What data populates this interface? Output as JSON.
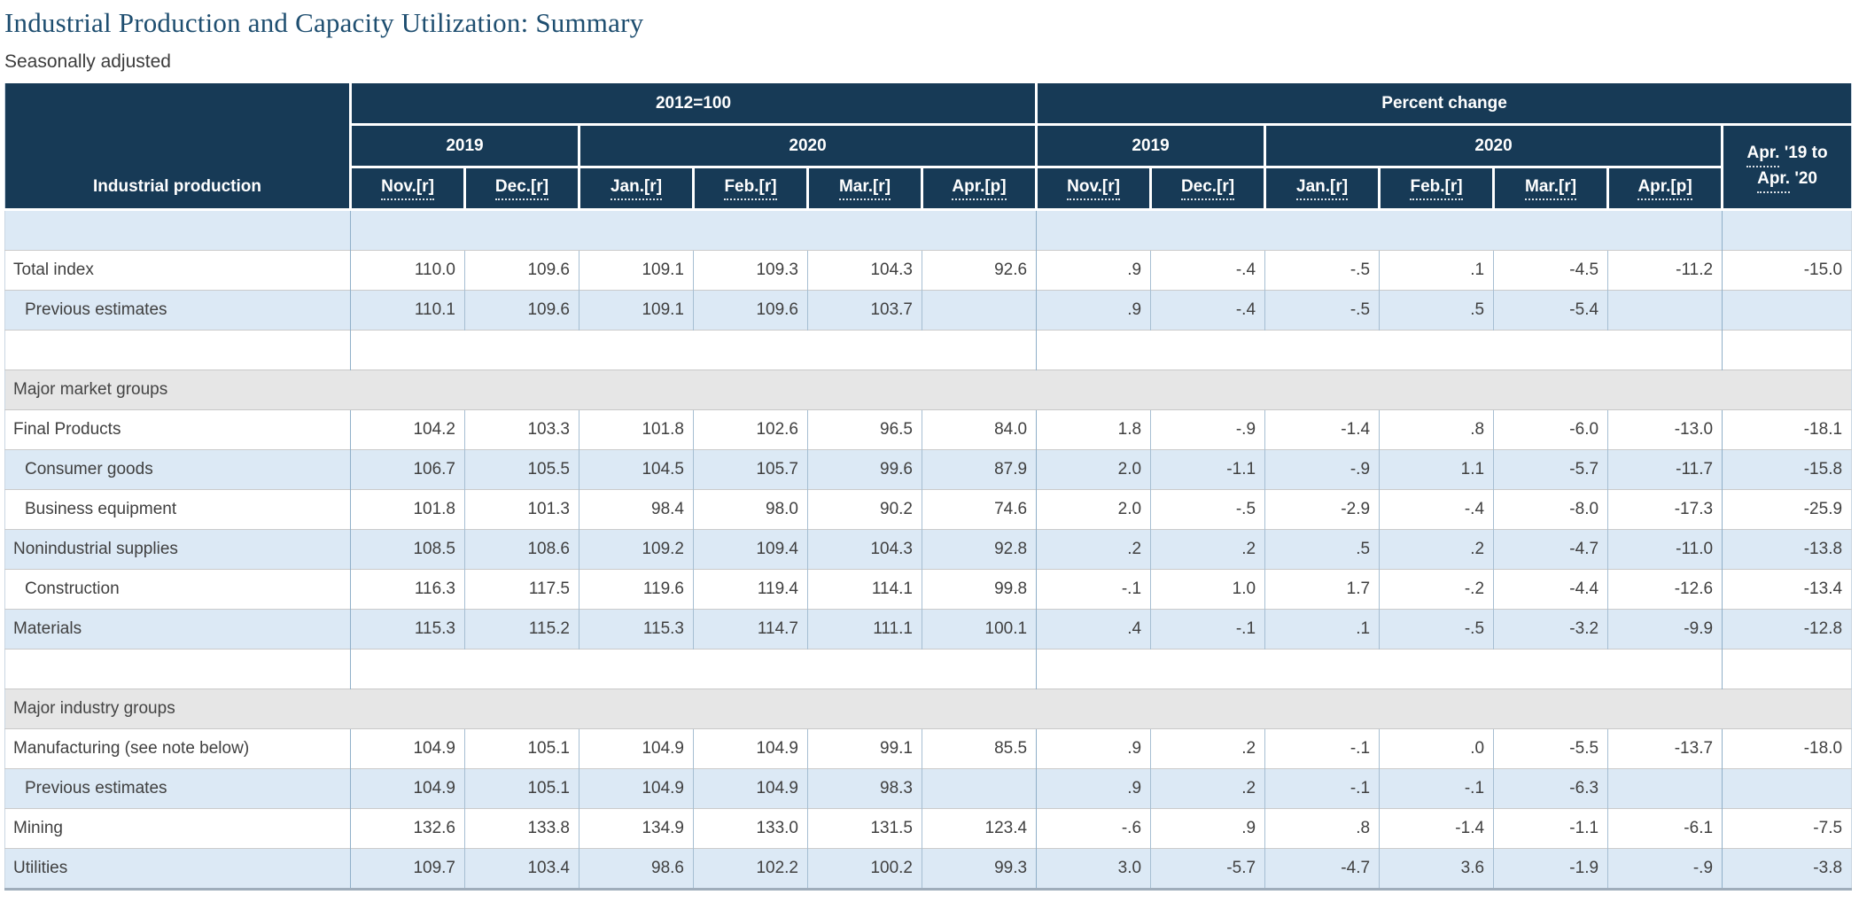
{
  "page": {
    "title": "Industrial Production and Capacity Utilization: Summary",
    "subtitle": "Seasonally adjusted"
  },
  "colors": {
    "header_bg": "#173a56",
    "alt_row_bg": "#dce9f5",
    "section_row_bg": "#e6e6e6",
    "title_text": "#1e4e70"
  },
  "table": {
    "corner_header": "Industrial production",
    "group_headers": {
      "index": "2012=100",
      "pct": "Percent change"
    },
    "year_headers": {
      "y2019": "2019",
      "y2020": "2020"
    },
    "month_headers": [
      "Nov.[r]",
      "Dec.[r]",
      "Jan.[r]",
      "Feb.[r]",
      "Mar.[r]",
      "Apr.[p]"
    ],
    "last_col_header": {
      "line1_abbr": "Apr.",
      "line1_rest": " '19 to",
      "line2_abbr": "Apr.",
      "line2_rest": " '20"
    },
    "rows": [
      {
        "type": "spacer",
        "bg": "blue"
      },
      {
        "type": "data",
        "bg": "white",
        "label": "Total index",
        "indent": 0,
        "idx": [
          "110.0",
          "109.6",
          "109.1",
          "109.3",
          "104.3",
          "92.6"
        ],
        "pct": [
          ".9",
          "-.4",
          "-.5",
          ".1",
          "-4.5",
          "-11.2"
        ],
        "yoy": "-15.0"
      },
      {
        "type": "data",
        "bg": "blue",
        "label": "Previous estimates",
        "indent": 1,
        "idx": [
          "110.1",
          "109.6",
          "109.1",
          "109.6",
          "103.7",
          ""
        ],
        "pct": [
          ".9",
          "-.4",
          "-.5",
          ".5",
          "-5.4",
          ""
        ],
        "yoy": ""
      },
      {
        "type": "spacer",
        "bg": "white"
      },
      {
        "type": "section",
        "label": "Major market groups"
      },
      {
        "type": "data",
        "bg": "white",
        "label": "Final Products",
        "indent": 0,
        "idx": [
          "104.2",
          "103.3",
          "101.8",
          "102.6",
          "96.5",
          "84.0"
        ],
        "pct": [
          "1.8",
          "-.9",
          "-1.4",
          ".8",
          "-6.0",
          "-13.0"
        ],
        "yoy": "-18.1"
      },
      {
        "type": "data",
        "bg": "blue",
        "label": "Consumer goods",
        "indent": 1,
        "idx": [
          "106.7",
          "105.5",
          "104.5",
          "105.7",
          "99.6",
          "87.9"
        ],
        "pct": [
          "2.0",
          "-1.1",
          "-.9",
          "1.1",
          "-5.7",
          "-11.7"
        ],
        "yoy": "-15.8"
      },
      {
        "type": "data",
        "bg": "white",
        "label": "Business equipment",
        "indent": 1,
        "idx": [
          "101.8",
          "101.3",
          "98.4",
          "98.0",
          "90.2",
          "74.6"
        ],
        "pct": [
          "2.0",
          "-.5",
          "-2.9",
          "-.4",
          "-8.0",
          "-17.3"
        ],
        "yoy": "-25.9"
      },
      {
        "type": "data",
        "bg": "blue",
        "label": "Nonindustrial supplies",
        "indent": 0,
        "idx": [
          "108.5",
          "108.6",
          "109.2",
          "109.4",
          "104.3",
          "92.8"
        ],
        "pct": [
          ".2",
          ".2",
          ".5",
          ".2",
          "-4.7",
          "-11.0"
        ],
        "yoy": "-13.8"
      },
      {
        "type": "data",
        "bg": "white",
        "label": "Construction",
        "indent": 1,
        "idx": [
          "116.3",
          "117.5",
          "119.6",
          "119.4",
          "114.1",
          "99.8"
        ],
        "pct": [
          "-.1",
          "1.0",
          "1.7",
          "-.2",
          "-4.4",
          "-12.6"
        ],
        "yoy": "-13.4"
      },
      {
        "type": "data",
        "bg": "blue",
        "label": "Materials",
        "indent": 0,
        "idx": [
          "115.3",
          "115.2",
          "115.3",
          "114.7",
          "111.1",
          "100.1"
        ],
        "pct": [
          ".4",
          "-.1",
          ".1",
          "-.5",
          "-3.2",
          "-9.9"
        ],
        "yoy": "-12.8"
      },
      {
        "type": "spacer",
        "bg": "white"
      },
      {
        "type": "section",
        "label": "Major industry groups"
      },
      {
        "type": "data",
        "bg": "white",
        "label": "Manufacturing (see note below)",
        "indent": 0,
        "idx": [
          "104.9",
          "105.1",
          "104.9",
          "104.9",
          "99.1",
          "85.5"
        ],
        "pct": [
          ".9",
          ".2",
          "-.1",
          ".0",
          "-5.5",
          "-13.7"
        ],
        "yoy": "-18.0"
      },
      {
        "type": "data",
        "bg": "blue",
        "label": "Previous estimates",
        "indent": 1,
        "idx": [
          "104.9",
          "105.1",
          "104.9",
          "104.9",
          "98.3",
          ""
        ],
        "pct": [
          ".9",
          ".2",
          "-.1",
          "-.1",
          "-6.3",
          ""
        ],
        "yoy": ""
      },
      {
        "type": "data",
        "bg": "white",
        "label": "Mining",
        "indent": 0,
        "idx": [
          "132.6",
          "133.8",
          "134.9",
          "133.0",
          "131.5",
          "123.4"
        ],
        "pct": [
          "-.6",
          ".9",
          ".8",
          "-1.4",
          "-1.1",
          "-6.1"
        ],
        "yoy": "-7.5"
      },
      {
        "type": "data",
        "bg": "blue",
        "label": "Utilities",
        "indent": 0,
        "idx": [
          "109.7",
          "103.4",
          "98.6",
          "102.2",
          "100.2",
          "99.3"
        ],
        "pct": [
          "3.0",
          "-5.7",
          "-4.7",
          "3.6",
          "-1.9",
          "-.9"
        ],
        "yoy": "-3.8"
      }
    ]
  }
}
